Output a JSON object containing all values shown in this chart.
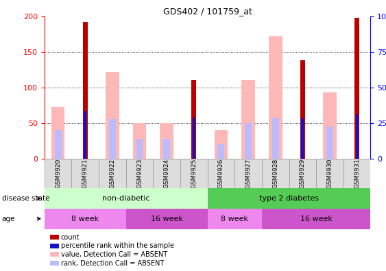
{
  "title": "GDS402 / 101759_at",
  "samples": [
    "GSM9920",
    "GSM9921",
    "GSM9922",
    "GSM9923",
    "GSM9924",
    "GSM9925",
    "GSM9926",
    "GSM9927",
    "GSM9928",
    "GSM9929",
    "GSM9930",
    "GSM9931"
  ],
  "count": [
    null,
    192,
    null,
    null,
    null,
    110,
    null,
    null,
    null,
    138,
    null,
    198
  ],
  "percentile_rank": [
    null,
    67,
    null,
    null,
    null,
    57,
    null,
    null,
    null,
    56,
    null,
    62
  ],
  "value_absent": [
    73,
    null,
    122,
    50,
    50,
    null,
    40,
    110,
    172,
    null,
    93,
    null
  ],
  "rank_absent": [
    40,
    null,
    55,
    28,
    28,
    null,
    20,
    50,
    57,
    null,
    45,
    null
  ],
  "ylim": [
    0,
    200
  ],
  "yticks_left": [
    0,
    50,
    100,
    150,
    200
  ],
  "yticks_right": [
    0,
    25,
    50,
    75,
    100
  ],
  "bar_color_count": "#bb0000",
  "bar_color_rank": "#1111cc",
  "bar_color_value_absent": "#ffb8b8",
  "bar_color_rank_absent": "#bbbbff",
  "disease_state_color_1": "#ccffcc",
  "disease_state_color_2": "#55cc55",
  "age_color_light": "#ee88ee",
  "age_color_dark": "#cc44cc",
  "sample_box_color": "#dddddd",
  "legend_items": [
    [
      "count",
      "#bb0000"
    ],
    [
      "percentile rank within the sample",
      "#1111cc"
    ],
    [
      "value, Detection Call = ABSENT",
      "#ffb8b8"
    ],
    [
      "rank, Detection Call = ABSENT",
      "#bbbbff"
    ]
  ]
}
